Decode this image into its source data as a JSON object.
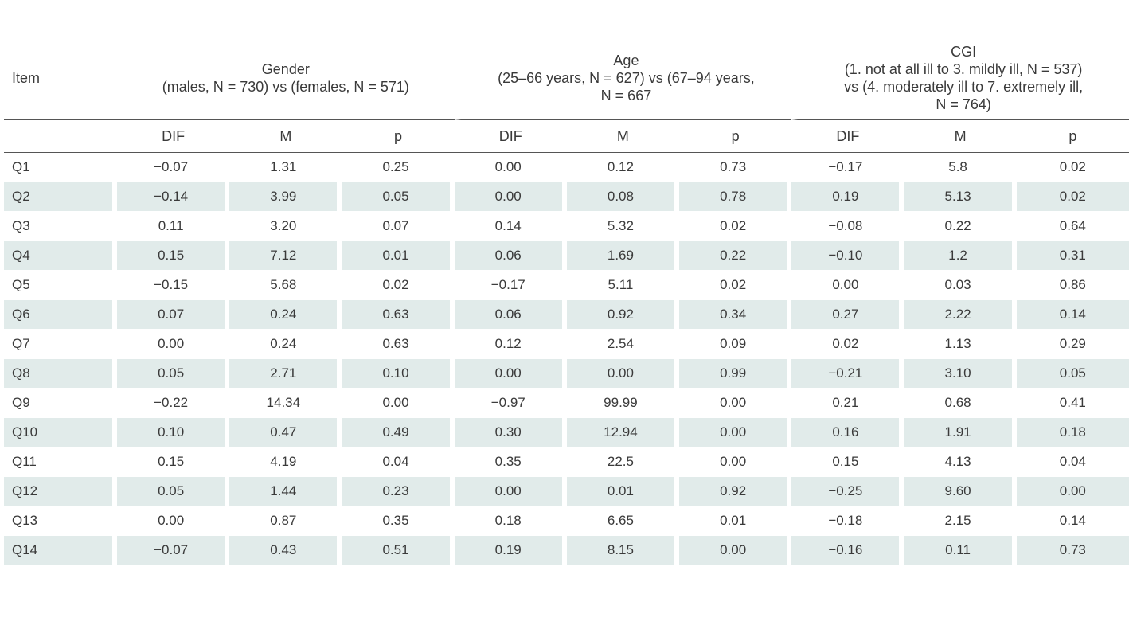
{
  "table": {
    "item_header": "Item",
    "groups": [
      {
        "lines": [
          "Gender",
          "(males, N = 730) vs (females, N = 571)"
        ]
      },
      {
        "lines": [
          "Age",
          "(25–66 years, N = 627) vs (67–94 years,",
          "N = 667"
        ]
      },
      {
        "lines": [
          "CGI",
          "(1. not at all ill to 3. mildly ill, N = 537)",
          "vs (4. moderately ill to  7. extremely ill,",
          "N = 764)"
        ]
      }
    ],
    "subheaders": [
      "DIF",
      "M",
      "p",
      "DIF",
      "M",
      "p",
      "DIF",
      "M",
      "p"
    ],
    "rows": [
      {
        "item": "Q1",
        "values": [
          "−0.07",
          "1.31",
          "0.25",
          "0.00",
          "0.12",
          "0.73",
          "−0.17",
          "5.8",
          "0.02"
        ]
      },
      {
        "item": "Q2",
        "values": [
          "−0.14",
          "3.99",
          "0.05",
          "0.00",
          "0.08",
          "0.78",
          "0.19",
          "5.13",
          "0.02"
        ]
      },
      {
        "item": "Q3",
        "values": [
          "0.11",
          "3.20",
          "0.07",
          "0.14",
          "5.32",
          "0.02",
          "−0.08",
          "0.22",
          "0.64"
        ]
      },
      {
        "item": "Q4",
        "values": [
          "0.15",
          "7.12",
          "0.01",
          "0.06",
          "1.69",
          "0.22",
          "−0.10",
          "1.2",
          "0.31"
        ]
      },
      {
        "item": "Q5",
        "values": [
          "−0.15",
          "5.68",
          "0.02",
          "−0.17",
          "5.11",
          "0.02",
          "0.00",
          "0.03",
          "0.86"
        ]
      },
      {
        "item": "Q6",
        "values": [
          "0.07",
          "0.24",
          "0.63",
          "0.06",
          "0.92",
          "0.34",
          "0.27",
          "2.22",
          "0.14"
        ]
      },
      {
        "item": "Q7",
        "values": [
          "0.00",
          "0.24",
          "0.63",
          "0.12",
          "2.54",
          "0.09",
          "0.02",
          "1.13",
          "0.29"
        ]
      },
      {
        "item": "Q8",
        "values": [
          "0.05",
          "2.71",
          "0.10",
          "0.00",
          "0.00",
          "0.99",
          "−0.21",
          "3.10",
          "0.05"
        ]
      },
      {
        "item": "Q9",
        "values": [
          "−0.22",
          "14.34",
          "0.00",
          "−0.97",
          "99.99",
          "0.00",
          "0.21",
          "0.68",
          "0.41"
        ]
      },
      {
        "item": "Q10",
        "values": [
          "0.10",
          "0.47",
          "0.49",
          "0.30",
          "12.94",
          "0.00",
          "0.16",
          "1.91",
          "0.18"
        ]
      },
      {
        "item": "Q11",
        "values": [
          "0.15",
          "4.19",
          "0.04",
          "0.35",
          "22.5",
          "0.00",
          "0.15",
          "4.13",
          "0.04"
        ]
      },
      {
        "item": "Q12",
        "values": [
          "0.05",
          "1.44",
          "0.23",
          "0.00",
          "0.01",
          "0.92",
          "−0.25",
          "9.60",
          "0.00"
        ]
      },
      {
        "item": "Q13",
        "values": [
          "0.00",
          "0.87",
          "0.35",
          "0.18",
          "6.65",
          "0.01",
          "−0.18",
          "2.15",
          "0.14"
        ]
      },
      {
        "item": "Q14",
        "values": [
          "−0.07",
          "0.43",
          "0.51",
          "0.19",
          "8.15",
          "0.00",
          "−0.16",
          "0.11",
          "0.73"
        ]
      }
    ],
    "colors": {
      "shade": "#e1ebea",
      "text": "#3a3a3a",
      "rule": "#555555"
    }
  }
}
